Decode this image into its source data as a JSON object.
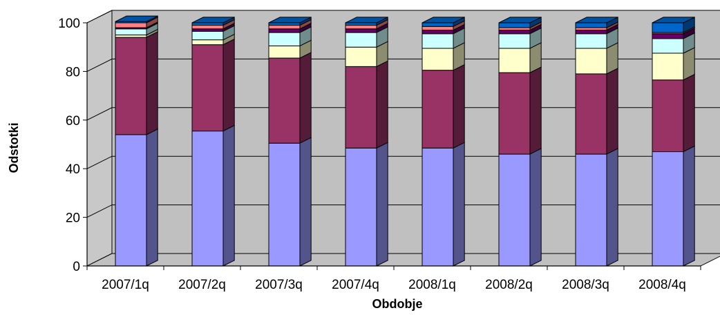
{
  "chart_data": {
    "type": "bar",
    "stacked": true,
    "three_d": true,
    "xlabel": "Obdobje",
    "ylabel": "Odstotki",
    "ylim": [
      0,
      100
    ],
    "yticks": [
      0,
      20,
      40,
      60,
      80,
      100
    ],
    "grid": true,
    "legend": "none",
    "categories": [
      "2007/1q",
      "2007/2q",
      "2007/3q",
      "2007/4q",
      "2008/1q",
      "2008/2q",
      "2008/3q",
      "2008/4q"
    ],
    "series": [
      {
        "values": [
          54,
          55.5,
          50.5,
          48.5,
          48.5,
          46,
          46,
          47
        ],
        "color": "#9999ff"
      },
      {
        "values": [
          40,
          35.5,
          35,
          33.5,
          32,
          33.5,
          33,
          29.5
        ],
        "color": "#993366"
      },
      {
        "values": [
          1,
          2,
          5,
          8,
          9,
          10,
          10.5,
          11
        ],
        "color": "#ffffcc"
      },
      {
        "values": [
          2.5,
          3.5,
          5.5,
          6,
          6,
          6,
          6,
          6
        ],
        "color": "#ccffff"
      },
      {
        "values": [
          0.5,
          1,
          1.5,
          1.5,
          1.5,
          1.5,
          1.5,
          2
        ],
        "color": "#660066"
      },
      {
        "values": [
          2,
          1.5,
          1.5,
          1.5,
          1.5,
          1,
          1,
          0.5
        ],
        "color": "#ff8080"
      },
      {
        "values": [
          0.5,
          1,
          1,
          1,
          1.5,
          2,
          2,
          4
        ],
        "color": "#0066cc"
      }
    ]
  }
}
